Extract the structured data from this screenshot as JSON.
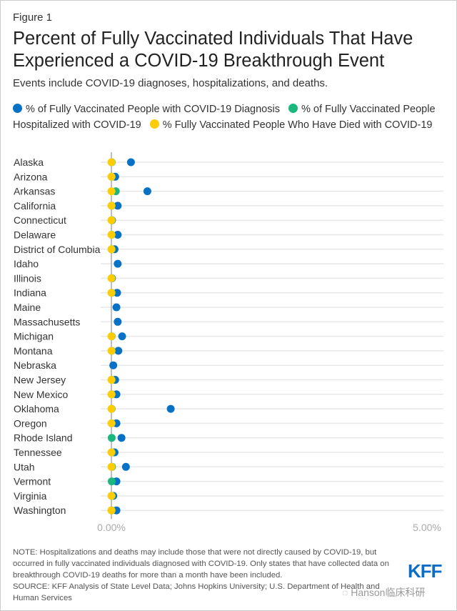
{
  "figure_label": "Figure 1",
  "chart_data": {
    "type": "scatter",
    "title": "Percent of Fully Vaccinated Individuals That Have Experienced a COVID-19 Breakthrough Event",
    "subtitle": "Events include COVID-19 diagnoses, hospitalizations, and deaths.",
    "xlim": [
      0,
      5
    ],
    "xticks": [
      "0.00%",
      "5.00%"
    ],
    "legend_placement": "top",
    "colors": {
      "diagnosis": "#0771c6",
      "hospitalized": "#1bb87e",
      "died": "#fdcc05"
    },
    "series_labels": {
      "diagnosis": "% of Fully Vaccinated People with COVID-19 Diagnosis",
      "hospitalized": "% of Fully Vaccinated People Hospitalized with COVID-19",
      "died": "% Fully Vaccinated People Who Have Died with COVID-19"
    },
    "categories": [
      "Alaska",
      "Arizona",
      "Arkansas",
      "California",
      "Connecticut",
      "Delaware",
      "District of Columbia",
      "Idaho",
      "Illinois",
      "Indiana",
      "Maine",
      "Massachusetts",
      "Michigan",
      "Montana",
      "Nebraska",
      "New Jersey",
      "New Mexico",
      "Oklahoma",
      "Oregon",
      "Rhode Island",
      "Tennessee",
      "Utah",
      "Vermont",
      "Virginia",
      "Washington"
    ],
    "series": [
      {
        "name": "diagnosis",
        "values": [
          0.31,
          0.06,
          0.57,
          0.1,
          0.01,
          0.1,
          0.05,
          0.1,
          0.01,
          0.09,
          0.08,
          0.1,
          0.17,
          0.11,
          0.03,
          0.06,
          0.08,
          0.94,
          0.08,
          0.16,
          0.05,
          0.23,
          0.08,
          0.03,
          0.08
        ]
      },
      {
        "name": "hospitalized",
        "values": [
          0.005,
          0.005,
          0.07,
          0.005,
          0.005,
          0.005,
          0.005,
          null,
          0.005,
          0.005,
          null,
          null,
          0.005,
          0.005,
          null,
          0.005,
          0.005,
          0.005,
          0.005,
          0.005,
          0.005,
          0.01,
          0.005,
          0.005,
          0.005
        ]
      },
      {
        "name": "died",
        "values": [
          0.001,
          0.001,
          0.001,
          0.001,
          0.001,
          0.001,
          0.001,
          null,
          0.001,
          0.001,
          null,
          null,
          0.001,
          0.001,
          null,
          0.001,
          0.001,
          0.001,
          0.001,
          null,
          0.001,
          0.001,
          null,
          0.002,
          0.001
        ]
      }
    ]
  },
  "note": "NOTE: Hospitalizations and deaths may include those that were not directly caused by COVID-19, but occurred in fully vaccinated individuals diagnosed with COVID-19. Only states that have collected data on breakthrough COVID-19 deaths for more than a month have been included.",
  "source": "SOURCE: KFF Analysis of State Level Data; Johns Hopkins University; U.S. Department of Health and Human Services",
  "logo": "KFF",
  "watermark": "Hanson临床科研"
}
